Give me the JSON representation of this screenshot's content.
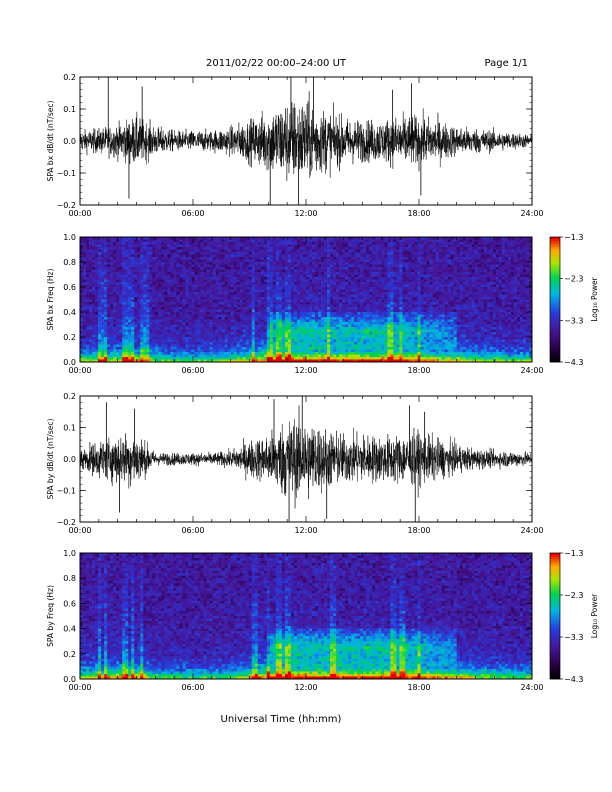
{
  "header": {
    "title": "2011/02/22  00:00–24:00 UT",
    "page": "Page 1/1"
  },
  "x_axis_title": "Universal Time (hh:mm)",
  "colorbar_label": "Log₁₀ Power",
  "chart_data": [
    {
      "type": "line",
      "ylabel": "SPA bx dB/dt (nT/sec)",
      "xlim": [
        "00:00",
        "24:00"
      ],
      "x_ticks": [
        "00:00",
        "06:00",
        "12:00",
        "18:00",
        "24:00"
      ],
      "ylim": [
        -0.2,
        0.2
      ],
      "y_ticks": [
        "0.2",
        "0.1",
        "0.0",
        "−0.1",
        "−0.2"
      ],
      "x_hours": [
        0,
        1,
        2,
        3,
        4,
        5,
        6,
        7,
        8,
        9,
        10,
        11,
        12,
        13,
        14,
        15,
        16,
        17,
        18,
        19,
        20,
        21,
        22,
        23,
        24
      ],
      "envelope": [
        0.05,
        0.06,
        0.08,
        0.12,
        0.07,
        0.05,
        0.05,
        0.05,
        0.07,
        0.1,
        0.15,
        0.2,
        0.2,
        0.15,
        0.11,
        0.1,
        0.1,
        0.12,
        0.12,
        0.1,
        0.07,
        0.06,
        0.05,
        0.04,
        0.03
      ],
      "spikes": [
        [
          1.5,
          0.2
        ],
        [
          2.6,
          -0.18
        ],
        [
          3.3,
          0.17
        ],
        [
          10.1,
          -0.2
        ],
        [
          11.2,
          0.2
        ],
        [
          11.6,
          -0.2
        ],
        [
          12.4,
          0.2
        ],
        [
          16.6,
          0.16
        ],
        [
          17.6,
          0.18
        ],
        [
          18.1,
          -0.17
        ]
      ]
    },
    {
      "type": "heatmap",
      "ylabel": "SPA bx Freq (Hz)",
      "xlim": [
        "00:00",
        "24:00"
      ],
      "x_ticks": [
        "00:00",
        "06:00",
        "12:00",
        "18:00",
        "24:00"
      ],
      "ylim": [
        0.0,
        1.0
      ],
      "y_ticks": [
        "1.0",
        "0.8",
        "0.6",
        "0.4",
        "0.2",
        "0.0"
      ],
      "colorbar": {
        "range": [
          -4.3,
          -1.3
        ],
        "ticks": [
          "−1.3",
          "−2.3",
          "−3.3",
          "−4.3"
        ]
      },
      "activity_hours": [
        0,
        1,
        2,
        3,
        4,
        5,
        6,
        7,
        8,
        9,
        10,
        11,
        12,
        13,
        14,
        15,
        16,
        17,
        18,
        19,
        20,
        21,
        22,
        23,
        24
      ],
      "activity": [
        0.35,
        0.4,
        0.5,
        0.55,
        0.3,
        0.25,
        0.25,
        0.3,
        0.35,
        0.55,
        0.7,
        0.8,
        0.85,
        0.8,
        0.78,
        0.8,
        0.82,
        0.8,
        0.7,
        0.6,
        0.5,
        0.4,
        0.35,
        0.3,
        0.3
      ],
      "hot_band_hz": [
        0.15,
        0.35
      ],
      "streak_hours": [
        1.0,
        1.3,
        2.4,
        2.7,
        3.3,
        3.5,
        9.2,
        10.1,
        10.6,
        11.0,
        13.2,
        16.5,
        17.0,
        18.0
      ]
    },
    {
      "type": "line",
      "ylabel": "SPA by dB/dt (nT/sec)",
      "xlim": [
        "00:00",
        "24:00"
      ],
      "x_ticks": [
        "00:00",
        "06:00",
        "12:00",
        "18:00",
        "24:00"
      ],
      "ylim": [
        -0.2,
        0.2
      ],
      "y_ticks": [
        "0.2",
        "0.1",
        "0.0",
        "−0.1",
        "−0.2"
      ],
      "x_hours": [
        0,
        1,
        2,
        3,
        4,
        5,
        6,
        7,
        8,
        9,
        10,
        11,
        12,
        13,
        14,
        15,
        16,
        17,
        18,
        19,
        20,
        21,
        22,
        23,
        24
      ],
      "envelope": [
        0.05,
        0.09,
        0.12,
        0.13,
        0.03,
        0.03,
        0.03,
        0.03,
        0.04,
        0.09,
        0.12,
        0.2,
        0.2,
        0.15,
        0.12,
        0.12,
        0.11,
        0.12,
        0.13,
        0.1,
        0.07,
        0.05,
        0.04,
        0.04,
        0.03
      ],
      "spikes": [
        [
          1.4,
          0.18
        ],
        [
          2.1,
          -0.17
        ],
        [
          2.9,
          0.16
        ],
        [
          10.3,
          0.19
        ],
        [
          11.1,
          -0.2
        ],
        [
          11.8,
          0.2
        ],
        [
          13.1,
          -0.19
        ],
        [
          17.5,
          0.17
        ],
        [
          17.8,
          -0.2
        ],
        [
          18.3,
          0.15
        ]
      ]
    },
    {
      "type": "heatmap",
      "ylabel": "SPA by Freq (Hz)",
      "xlim": [
        "00:00",
        "24:00"
      ],
      "x_ticks": [
        "00:00",
        "06:00",
        "12:00",
        "18:00",
        "24:00"
      ],
      "ylim": [
        0.0,
        1.0
      ],
      "y_ticks": [
        "1.0",
        "0.8",
        "0.6",
        "0.4",
        "0.2",
        "0.0"
      ],
      "colorbar": {
        "range": [
          -4.3,
          -1.3
        ],
        "ticks": [
          "−1.3",
          "−2.3",
          "−3.3",
          "−4.3"
        ]
      },
      "activity_hours": [
        0,
        1,
        2,
        3,
        4,
        5,
        6,
        7,
        8,
        9,
        10,
        11,
        12,
        13,
        14,
        15,
        16,
        17,
        18,
        19,
        20,
        21,
        22,
        23,
        24
      ],
      "activity": [
        0.4,
        0.55,
        0.6,
        0.6,
        0.3,
        0.25,
        0.25,
        0.25,
        0.3,
        0.55,
        0.75,
        0.85,
        0.85,
        0.8,
        0.8,
        0.82,
        0.84,
        0.82,
        0.75,
        0.65,
        0.55,
        0.4,
        0.35,
        0.3,
        0.3
      ],
      "hot_band_hz": [
        0.15,
        0.35
      ],
      "streak_hours": [
        1.0,
        1.4,
        2.4,
        2.8,
        3.3,
        9.3,
        10.0,
        10.6,
        11.0,
        13.4,
        16.6,
        17.1,
        18.0
      ]
    }
  ]
}
